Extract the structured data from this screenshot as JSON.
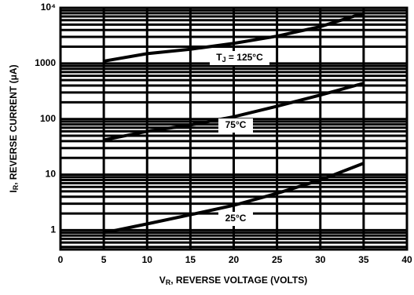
{
  "chart_data": {
    "type": "line",
    "x_label": [
      "V",
      "R",
      ", REVERSE VOLTAGE (VOLTS)"
    ],
    "y_label": [
      "I",
      "R",
      ", REVERSE CURRENT (μA)"
    ],
    "x": [
      5,
      10,
      15,
      20,
      25,
      30,
      35
    ],
    "series": [
      {
        "label": [
          "T",
          "J",
          " = 125°C"
        ],
        "color": "#000000",
        "values": [
          1100,
          1500,
          1800,
          2300,
          3100,
          4600,
          8000
        ]
      },
      {
        "label": [
          "75°C"
        ],
        "color": "#000000",
        "values": [
          42,
          60,
          78,
          110,
          170,
          270,
          440
        ]
      },
      {
        "label": [
          "25°C"
        ],
        "color": "#000000",
        "values": [
          0.9,
          1.3,
          1.9,
          2.8,
          4.6,
          8,
          16
        ]
      }
    ],
    "xlim": [
      0,
      40
    ],
    "xticks": [
      0,
      5,
      10,
      15,
      20,
      25,
      30,
      35,
      40
    ],
    "ylim": [
      0.45,
      10000
    ],
    "yticks": [
      1,
      10,
      100,
      1000,
      {
        "value": 10000,
        "label": "10⁴"
      }
    ],
    "y_scale": "log",
    "grid": true,
    "minor_grid": true
  }
}
